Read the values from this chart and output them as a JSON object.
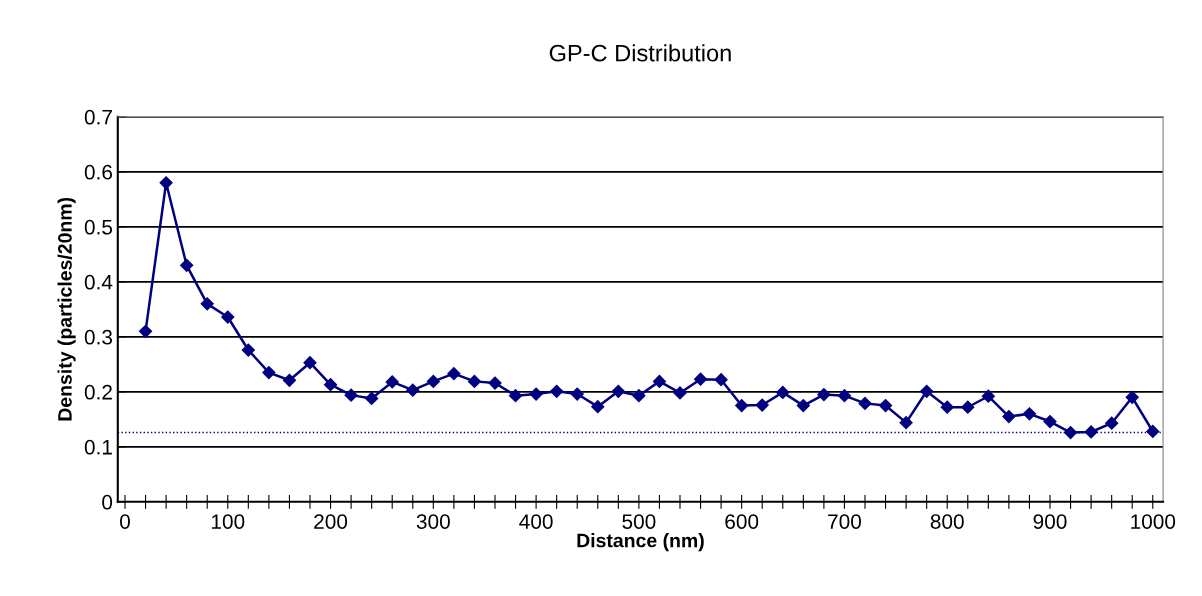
{
  "chart_data": {
    "type": "line",
    "title": "GP-C Distribution",
    "xlabel": "Distance (nm)",
    "ylabel": "Density (particles/20nm)",
    "x": [
      20,
      40,
      60,
      80,
      100,
      120,
      140,
      160,
      180,
      200,
      220,
      240,
      260,
      280,
      300,
      320,
      340,
      360,
      380,
      400,
      420,
      440,
      460,
      480,
      500,
      520,
      540,
      560,
      580,
      600,
      620,
      640,
      660,
      680,
      700,
      720,
      740,
      760,
      780,
      800,
      820,
      840,
      860,
      880,
      900,
      920,
      940,
      960,
      980,
      1000
    ],
    "series": [
      {
        "color": "#000080",
        "values": [
          0.31,
          0.58,
          0.43,
          0.36,
          0.336,
          0.276,
          0.235,
          0.221,
          0.253,
          0.213,
          0.194,
          0.188,
          0.218,
          0.203,
          0.219,
          0.233,
          0.219,
          0.216,
          0.193,
          0.196,
          0.201,
          0.196,
          0.173,
          0.201,
          0.193,
          0.219,
          0.198,
          0.223,
          0.222,
          0.175,
          0.176,
          0.199,
          0.175,
          0.195,
          0.193,
          0.179,
          0.175,
          0.144,
          0.201,
          0.172,
          0.172,
          0.192,
          0.155,
          0.16,
          0.146,
          0.126,
          0.127,
          0.143,
          0.19,
          0.128
        ]
      }
    ],
    "marker": "diamond",
    "line_style": "solid",
    "xlim": [
      -7,
      1010
    ],
    "xticks": [
      0,
      {
        "value": 20,
        "label": null
      },
      {
        "value": 40,
        "label": null
      },
      {
        "value": 60,
        "label": null
      },
      {
        "value": 80,
        "label": null
      },
      100,
      {
        "value": 120,
        "label": null
      },
      {
        "value": 140,
        "label": null
      },
      {
        "value": 160,
        "label": null
      },
      {
        "value": 180,
        "label": null
      },
      200,
      {
        "value": 220,
        "label": null
      },
      {
        "value": 240,
        "label": null
      },
      {
        "value": 260,
        "label": null
      },
      {
        "value": 280,
        "label": null
      },
      300,
      {
        "value": 320,
        "label": null
      },
      {
        "value": 340,
        "label": null
      },
      {
        "value": 360,
        "label": null
      },
      {
        "value": 380,
        "label": null
      },
      400,
      {
        "value": 420,
        "label": null
      },
      {
        "value": 440,
        "label": null
      },
      {
        "value": 460,
        "label": null
      },
      {
        "value": 480,
        "label": null
      },
      500,
      {
        "value": 520,
        "label": null
      },
      {
        "value": 540,
        "label": null
      },
      {
        "value": 560,
        "label": null
      },
      {
        "value": 580,
        "label": null
      },
      600,
      {
        "value": 620,
        "label": null
      },
      {
        "value": 640,
        "label": null
      },
      {
        "value": 660,
        "label": null
      },
      {
        "value": 680,
        "label": null
      },
      700,
      {
        "value": 720,
        "label": null
      },
      {
        "value": 740,
        "label": null
      },
      {
        "value": 760,
        "label": null
      },
      {
        "value": 780,
        "label": null
      },
      800,
      {
        "value": 820,
        "label": null
      },
      {
        "value": 840,
        "label": null
      },
      {
        "value": 860,
        "label": null
      },
      {
        "value": 880,
        "label": null
      },
      900,
      {
        "value": 920,
        "label": null
      },
      {
        "value": 940,
        "label": null
      },
      {
        "value": 960,
        "label": null
      },
      {
        "value": 980,
        "label": null
      },
      1000
    ],
    "ylim": [
      0,
      0.7
    ],
    "yticks": [
      0,
      0.1,
      0.2,
      0.3,
      0.4,
      0.5,
      0.6,
      0.7
    ],
    "grid": "y",
    "ref_lines": [
      {
        "axis": "y",
        "value": 0.126,
        "color": "#000080",
        "line_style": "dotted"
      }
    ]
  }
}
